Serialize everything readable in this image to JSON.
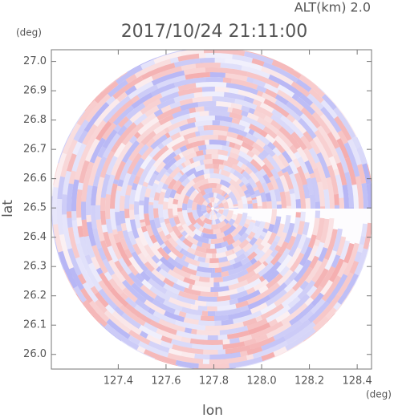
{
  "chart_data": {
    "type": "ppi",
    "title": "2017/10/24 21:11:00",
    "annotation": "ALT(km) 2.0",
    "x_label": "lon",
    "y_label": "lat",
    "x_unit": "(deg)",
    "y_unit": "(deg)",
    "xlim": [
      127.12,
      128.46
    ],
    "ylim": [
      25.95,
      27.04
    ],
    "xticks": [
      127.4,
      127.6,
      127.8,
      {
        "value": 128.0,
        "label": "128.0"
      },
      128.2,
      128.4
    ],
    "yticks": [
      {
        "value": 26.0,
        "label": "26.0"
      },
      26.1,
      26.2,
      26.3,
      26.4,
      26.5,
      26.6,
      26.7,
      26.8,
      26.9,
      {
        "value": 27.0,
        "label": "27.0"
      }
    ]
  }
}
